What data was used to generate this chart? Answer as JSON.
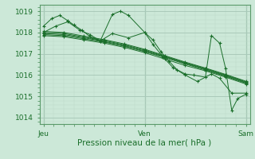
{
  "xlabel": "Pression niveau de la mer( hPa )",
  "bg_color": "#cce8d8",
  "grid_major_color": "#aacaba",
  "grid_minor_color": "#bcd8c8",
  "line_color": "#1a6e2a",
  "spine_color": "#5a9a6a",
  "yticks": [
    1014,
    1015,
    1016,
    1017,
    1018,
    1019
  ],
  "xtick_labels": [
    "Jeu",
    "Ven",
    "Sam"
  ],
  "xtick_positions": [
    0.0,
    0.5,
    1.0
  ],
  "xmin": -0.02,
  "xmax": 1.02,
  "ymin": 1013.7,
  "ymax": 1019.3,
  "lines": [
    [
      0.0,
      1018.3,
      0.04,
      1018.65,
      0.08,
      1018.8,
      0.12,
      1018.55,
      0.15,
      1018.35,
      0.19,
      1018.1,
      0.23,
      1017.8,
      0.28,
      1017.6,
      0.34,
      1018.85,
      0.38,
      1019.0,
      0.42,
      1018.8,
      0.5,
      1018.0,
      0.54,
      1017.65,
      0.58,
      1017.1,
      0.62,
      1016.65,
      0.66,
      1016.25,
      0.7,
      1016.05,
      0.74,
      1016.0,
      0.8,
      1015.9,
      0.83,
      1017.85,
      0.87,
      1017.5,
      0.9,
      1016.3,
      0.93,
      1014.35,
      0.96,
      1014.9,
      1.0,
      1015.1
    ],
    [
      0.0,
      1018.0,
      0.06,
      1018.3,
      0.12,
      1018.5,
      0.18,
      1018.1,
      0.23,
      1017.9,
      0.28,
      1017.6,
      0.34,
      1017.95,
      0.42,
      1017.75,
      0.5,
      1018.0,
      0.54,
      1017.45,
      0.59,
      1016.85,
      0.64,
      1016.35,
      0.7,
      1016.0,
      0.76,
      1015.7,
      0.83,
      1016.05,
      0.87,
      1015.85,
      0.93,
      1015.15,
      1.0,
      1015.15
    ],
    [
      0.0,
      1017.85,
      0.1,
      1017.8,
      0.2,
      1017.65,
      0.3,
      1017.5,
      0.4,
      1017.3,
      0.5,
      1017.05,
      0.6,
      1016.75,
      0.7,
      1016.45,
      0.8,
      1016.2,
      0.9,
      1015.9,
      1.0,
      1015.58
    ],
    [
      0.0,
      1017.9,
      0.1,
      1017.85,
      0.2,
      1017.7,
      0.3,
      1017.55,
      0.4,
      1017.35,
      0.5,
      1017.1,
      0.6,
      1016.82,
      0.7,
      1016.52,
      0.8,
      1016.24,
      0.9,
      1015.94,
      1.0,
      1015.62
    ],
    [
      0.0,
      1017.95,
      0.1,
      1017.9,
      0.2,
      1017.75,
      0.3,
      1017.58,
      0.4,
      1017.38,
      0.5,
      1017.13,
      0.6,
      1016.85,
      0.7,
      1016.55,
      0.8,
      1016.27,
      0.9,
      1015.97,
      1.0,
      1015.65
    ],
    [
      0.0,
      1018.0,
      0.1,
      1017.95,
      0.2,
      1017.78,
      0.3,
      1017.62,
      0.4,
      1017.42,
      0.5,
      1017.17,
      0.6,
      1016.88,
      0.7,
      1016.58,
      0.8,
      1016.3,
      0.9,
      1016.0,
      1.0,
      1015.68
    ],
    [
      0.0,
      1018.05,
      0.1,
      1018.0,
      0.2,
      1017.83,
      0.3,
      1017.66,
      0.4,
      1017.46,
      0.5,
      1017.21,
      0.6,
      1016.91,
      0.7,
      1016.61,
      0.8,
      1016.33,
      0.9,
      1016.03,
      1.0,
      1015.71
    ]
  ]
}
